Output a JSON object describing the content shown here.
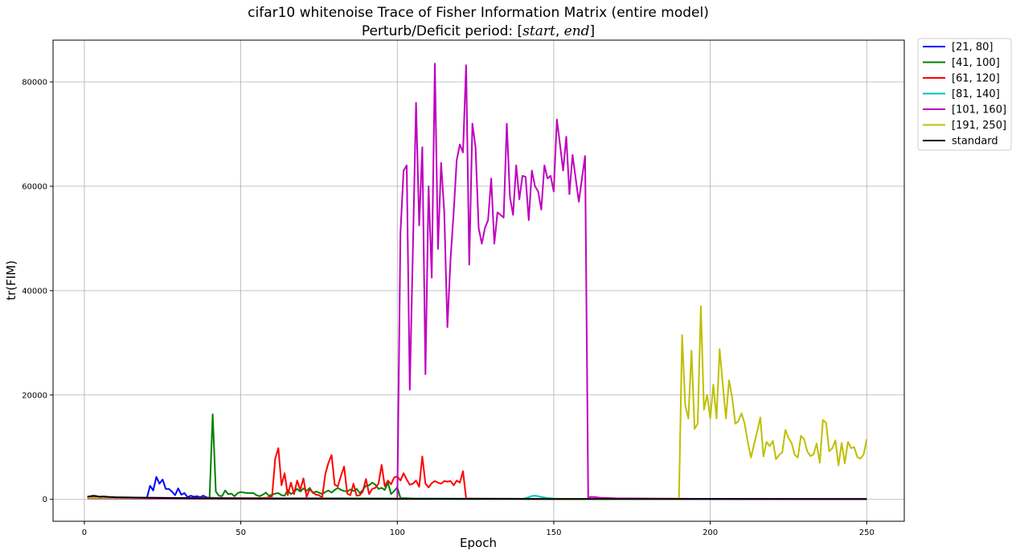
{
  "chart_data": {
    "type": "line",
    "title_line1": "cifar10 whitenoise Trace of Fisher Information Matrix (entire model)",
    "title_line2_prefix": "Perturb/Deficit period: [",
    "title_line2_start": "start",
    "title_line2_sep": ", ",
    "title_line2_end": "end",
    "title_line2_suffix": "]",
    "xlabel": "Epoch",
    "ylabel": "tr(FIM)",
    "xlim": [
      -10,
      262
    ],
    "ylim": [
      -4200,
      88000
    ],
    "xticks": [
      0,
      50,
      100,
      150,
      200,
      250
    ],
    "xtick_labels": [
      "0",
      "50",
      "100",
      "150",
      "200",
      "250"
    ],
    "yticks": [
      0,
      20000,
      40000,
      60000,
      80000
    ],
    "ytick_labels": [
      "0",
      "20000",
      "40000",
      "60000",
      "80000"
    ],
    "grid": true,
    "legend_position": "outside-top-right",
    "series": [
      {
        "name": "[21, 80]",
        "color": "#0000ff",
        "x": [
          1,
          5,
          10,
          15,
          20,
          21,
          22,
          23,
          24,
          25,
          26,
          27,
          28,
          29,
          30,
          31,
          32,
          33,
          34,
          35,
          36,
          37,
          38,
          39,
          40,
          45,
          50,
          60,
          70,
          80,
          90,
          100,
          150,
          200,
          250
        ],
        "y": [
          500,
          400,
          300,
          250,
          300,
          2600,
          1700,
          4300,
          3000,
          3800,
          2000,
          2000,
          1500,
          800,
          2100,
          900,
          1200,
          400,
          700,
          500,
          600,
          400,
          700,
          400,
          300,
          250,
          200,
          200,
          200,
          200,
          150,
          100,
          80,
          60,
          50
        ]
      },
      {
        "name": "[41, 100]",
        "color": "#008000",
        "x": [
          1,
          5,
          10,
          20,
          30,
          40,
          41,
          42,
          43,
          44,
          45,
          46,
          47,
          48,
          49,
          50,
          51,
          52,
          53,
          54,
          55,
          56,
          57,
          58,
          59,
          60,
          61,
          62,
          63,
          64,
          65,
          66,
          67,
          68,
          69,
          70,
          71,
          72,
          73,
          74,
          75,
          76,
          77,
          78,
          79,
          80,
          81,
          82,
          83,
          84,
          85,
          86,
          87,
          88,
          89,
          90,
          91,
          92,
          93,
          94,
          95,
          96,
          97,
          98,
          99,
          100,
          101,
          105,
          110,
          120,
          150,
          200,
          250
        ],
        "y": [
          500,
          400,
          350,
          300,
          250,
          300,
          16300,
          1500,
          700,
          600,
          1700,
          1000,
          1100,
          600,
          1200,
          1400,
          1300,
          1200,
          1200,
          1200,
          800,
          600,
          900,
          1300,
          700,
          900,
          1100,
          1200,
          800,
          700,
          1800,
          1000,
          1400,
          2000,
          1500,
          2100,
          1600,
          2200,
          1200,
          1500,
          1300,
          1000,
          1400,
          1700,
          1300,
          1800,
          2200,
          1800,
          1600,
          1500,
          1900,
          1600,
          2000,
          1200,
          1800,
          2600,
          2700,
          3200,
          2800,
          2000,
          2200,
          1800,
          3200,
          1000,
          1600,
          2300,
          300,
          200,
          150,
          100,
          80,
          60,
          50
        ]
      },
      {
        "name": "[61, 120]",
        "color": "#ff0000",
        "x": [
          1,
          10,
          20,
          40,
          50,
          55,
          58,
          59,
          60,
          61,
          62,
          63,
          64,
          65,
          66,
          67,
          68,
          69,
          70,
          71,
          72,
          73,
          74,
          75,
          76,
          77,
          78,
          79,
          80,
          81,
          82,
          83,
          84,
          85,
          86,
          87,
          88,
          89,
          90,
          91,
          92,
          93,
          94,
          95,
          96,
          97,
          98,
          99,
          100,
          101,
          102,
          103,
          104,
          105,
          106,
          107,
          108,
          109,
          110,
          111,
          112,
          113,
          114,
          115,
          116,
          117,
          118,
          119,
          120,
          121,
          122,
          125,
          150,
          200,
          250
        ],
        "y": [
          400,
          350,
          300,
          250,
          250,
          250,
          300,
          400,
          600,
          7800,
          9800,
          2700,
          5000,
          800,
          3200,
          1000,
          3600,
          1800,
          4000,
          500,
          1900,
          1400,
          900,
          800,
          300,
          4800,
          7000,
          8500,
          2800,
          2500,
          4500,
          6300,
          1100,
          800,
          3000,
          700,
          800,
          1500,
          3900,
          1000,
          2000,
          2200,
          3000,
          6600,
          2500,
          3600,
          2900,
          4200,
          4400,
          3600,
          5000,
          3800,
          2800,
          3000,
          3600,
          2400,
          8200,
          3000,
          2300,
          3100,
          3500,
          3200,
          3000,
          3500,
          3400,
          3500,
          2700,
          3600,
          3200,
          5400,
          200,
          150,
          100,
          60,
          50
        ]
      },
      {
        "name": "[81, 140]",
        "color": "#00bfbf",
        "x": [
          1,
          20,
          40,
          60,
          80,
          81,
          100,
          120,
          140,
          141,
          142,
          143,
          144,
          145,
          146,
          147,
          148,
          149,
          150,
          155,
          160,
          200,
          250
        ],
        "y": [
          300,
          250,
          200,
          200,
          200,
          250,
          200,
          150,
          100,
          250,
          400,
          650,
          700,
          600,
          450,
          350,
          250,
          200,
          150,
          100,
          80,
          60,
          50
        ]
      },
      {
        "name": "[101, 160]",
        "color": "#bf00bf",
        "x": [
          1,
          20,
          50,
          80,
          100,
          101,
          102,
          103,
          104,
          105,
          106,
          107,
          108,
          109,
          110,
          111,
          112,
          113,
          114,
          115,
          116,
          117,
          118,
          119,
          120,
          121,
          122,
          123,
          124,
          125,
          126,
          127,
          128,
          129,
          130,
          131,
          132,
          133,
          134,
          135,
          136,
          137,
          138,
          139,
          140,
          141,
          142,
          143,
          144,
          145,
          146,
          147,
          148,
          149,
          150,
          151,
          152,
          153,
          154,
          155,
          156,
          157,
          158,
          159,
          160,
          161,
          162,
          165,
          170,
          200,
          250
        ],
        "y": [
          200,
          150,
          100,
          100,
          100,
          51000,
          63000,
          64000,
          21000,
          48000,
          76000,
          52500,
          67500,
          24000,
          60000,
          42500,
          83500,
          48000,
          64500,
          55000,
          33000,
          46000,
          55000,
          65000,
          68000,
          66500,
          83200,
          45000,
          72000,
          67500,
          52000,
          49000,
          52000,
          53500,
          61500,
          49000,
          55000,
          54500,
          54000,
          72000,
          58000,
          54500,
          64000,
          57500,
          62000,
          61800,
          53500,
          63000,
          60000,
          59000,
          55500,
          64000,
          61500,
          62000,
          59000,
          72800,
          68000,
          63000,
          69500,
          58500,
          66000,
          61500,
          57000,
          61500,
          65800,
          300,
          500,
          300,
          200,
          100,
          80
        ]
      },
      {
        "name": "[191, 250]",
        "color": "#bfbf00",
        "x": [
          1,
          50,
          100,
          150,
          190,
          191,
          192,
          193,
          194,
          195,
          196,
          197,
          198,
          199,
          200,
          201,
          202,
          203,
          204,
          205,
          206,
          207,
          208,
          209,
          210,
          211,
          212,
          213,
          214,
          215,
          216,
          217,
          218,
          219,
          220,
          221,
          222,
          223,
          224,
          225,
          226,
          227,
          228,
          229,
          230,
          231,
          232,
          233,
          234,
          235,
          236,
          237,
          238,
          239,
          240,
          241,
          242,
          243,
          244,
          245,
          246,
          247,
          248,
          249,
          250
        ],
        "y": [
          300,
          200,
          150,
          100,
          100,
          31500,
          18000,
          15500,
          28500,
          13500,
          14500,
          37000,
          17200,
          20000,
          15500,
          22000,
          15500,
          28800,
          22000,
          15500,
          22800,
          19500,
          14500,
          15000,
          16500,
          14500,
          11000,
          8000,
          10500,
          13000,
          15700,
          8200,
          11000,
          10200,
          11200,
          7700,
          8500,
          9000,
          13300,
          11800,
          10800,
          8500,
          8000,
          12200,
          11500,
          9200,
          8300,
          8600,
          10700,
          7000,
          15200,
          14700,
          9200,
          9800,
          11300,
          6500,
          10800,
          6900,
          11000,
          9800,
          10000,
          8100,
          7800,
          8600,
          11500
        ]
      },
      {
        "name": "standard",
        "color": "#000000",
        "x": [
          1,
          2,
          3,
          4,
          5,
          6,
          8,
          10,
          15,
          20,
          30,
          40,
          60,
          80,
          100,
          150,
          200,
          250
        ],
        "y": [
          500,
          600,
          700,
          600,
          500,
          550,
          450,
          400,
          350,
          300,
          250,
          200,
          150,
          120,
          100,
          80,
          60,
          50
        ]
      }
    ]
  }
}
